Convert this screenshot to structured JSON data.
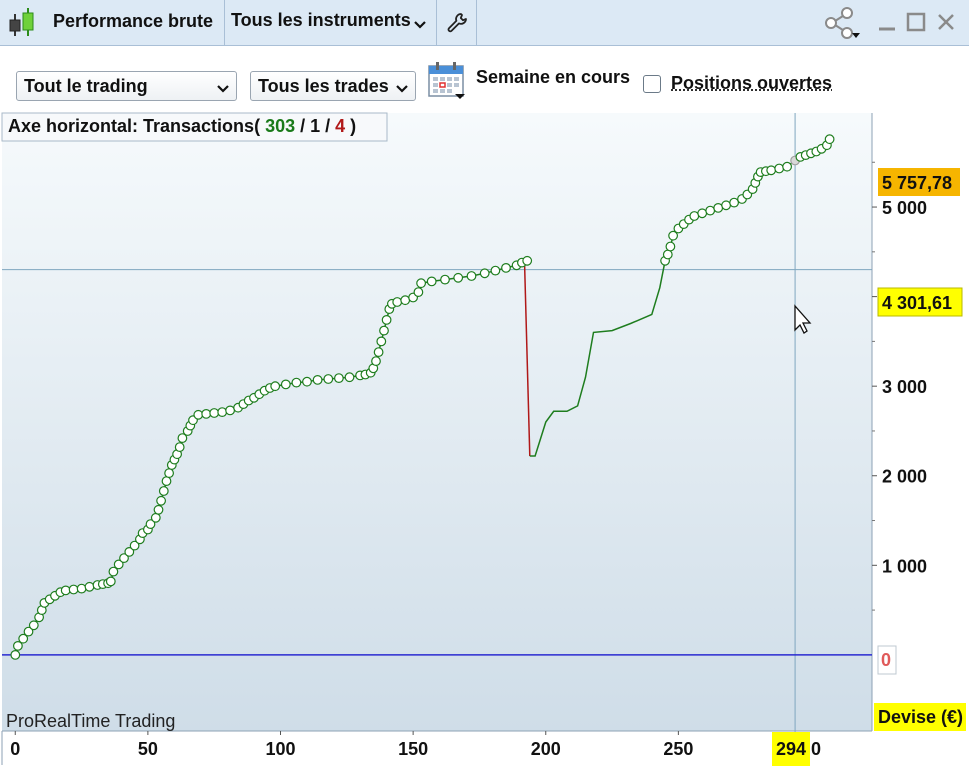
{
  "titlebar": {
    "title": "Performance brute",
    "instruments": "Tous les instruments"
  },
  "toolbar": {
    "filter_trading": "Tout le trading",
    "filter_trades": "Tous les trades",
    "period_label": "Semaine en cours",
    "open_positions_label": "Positions ouvertes",
    "open_positions_checked": false
  },
  "chart_header": {
    "prefix": "Axe horizontal:  Transactions",
    "open_paren": "( ",
    "wins": "303",
    "sep1": " / ",
    "neutral": "1",
    "sep2": " / ",
    "losses": "4",
    "close_paren": " )"
  },
  "colors": {
    "wins": "#1a7a1a",
    "losses": "#b01818",
    "equity_line": "#1e7d1e",
    "drawdown_line": "#b01818",
    "zero_line": "#2a2ad0",
    "marker_fill": "#ffffff",
    "highlight_yellow": "#ffff00",
    "last_value_orange": "#f6b500"
  },
  "watermark": "ProRealTime Trading",
  "y_badges": {
    "last_value": "5 757,78",
    "crosshair_value": "4 301,61",
    "zero": "0"
  },
  "currency_label": "Devise (€)",
  "crosshair_x_label": "294",
  "x_tail_label": "0",
  "chart_data": {
    "type": "line",
    "xlabel": "",
    "ylabel": "",
    "x_range": [
      -5,
      323
    ],
    "y_range": [
      -850,
      6050
    ],
    "x_ticks": [
      0,
      50,
      100,
      150,
      200,
      250
    ],
    "x_tick_labels": [
      "0",
      "50",
      "100",
      "150",
      "200",
      "250"
    ],
    "y_ticks": [
      1000,
      2000,
      3000,
      4000,
      5000
    ],
    "y_tick_labels": [
      "1 000",
      "2 000",
      "3 000",
      "4 000",
      "5 000"
    ],
    "crosshair": {
      "x": 294,
      "y": 4301.61
    },
    "segments": [
      {
        "name": "",
        "color_key": "equity_line",
        "markers": true,
        "points": [
          [
            0,
            0
          ],
          [
            1,
            100
          ],
          [
            3,
            180
          ],
          [
            5,
            260
          ],
          [
            7,
            330
          ],
          [
            9,
            420
          ],
          [
            10,
            500
          ],
          [
            11,
            580
          ],
          [
            13,
            620
          ],
          [
            15,
            660
          ],
          [
            17,
            700
          ],
          [
            19,
            720
          ],
          [
            22,
            730
          ],
          [
            25,
            740
          ],
          [
            28,
            760
          ],
          [
            31,
            780
          ],
          [
            33,
            790
          ],
          [
            35,
            800
          ],
          [
            36,
            820
          ],
          [
            37,
            930
          ],
          [
            39,
            1010
          ],
          [
            41,
            1080
          ],
          [
            43,
            1150
          ],
          [
            45,
            1220
          ],
          [
            47,
            1290
          ],
          [
            48,
            1360
          ],
          [
            50,
            1400
          ],
          [
            51,
            1460
          ],
          [
            53,
            1530
          ],
          [
            54,
            1620
          ],
          [
            55,
            1720
          ],
          [
            56,
            1830
          ],
          [
            57,
            1940
          ],
          [
            58,
            2030
          ],
          [
            59,
            2120
          ],
          [
            60,
            2180
          ],
          [
            61,
            2240
          ],
          [
            62,
            2320
          ],
          [
            63,
            2420
          ],
          [
            65,
            2500
          ],
          [
            66,
            2560
          ],
          [
            67,
            2620
          ],
          [
            69,
            2680
          ],
          [
            72,
            2690
          ],
          [
            75,
            2700
          ],
          [
            78,
            2710
          ],
          [
            81,
            2730
          ],
          [
            84,
            2760
          ],
          [
            86,
            2800
          ],
          [
            88,
            2840
          ],
          [
            90,
            2870
          ],
          [
            92,
            2910
          ],
          [
            94,
            2950
          ],
          [
            96,
            2980
          ],
          [
            98,
            3000
          ],
          [
            102,
            3020
          ],
          [
            106,
            3040
          ],
          [
            110,
            3050
          ],
          [
            114,
            3070
          ],
          [
            118,
            3080
          ],
          [
            122,
            3090
          ],
          [
            126,
            3100
          ],
          [
            130,
            3120
          ],
          [
            132,
            3130
          ],
          [
            134,
            3150
          ],
          [
            135,
            3200
          ],
          [
            136,
            3280
          ],
          [
            137,
            3380
          ],
          [
            138,
            3500
          ],
          [
            139,
            3620
          ],
          [
            140,
            3740
          ],
          [
            141,
            3860
          ],
          [
            142,
            3920
          ],
          [
            144,
            3940
          ],
          [
            147,
            3960
          ],
          [
            150,
            3990
          ],
          [
            152,
            4050
          ],
          [
            153,
            4150
          ],
          [
            157,
            4170
          ],
          [
            162,
            4190
          ],
          [
            167,
            4210
          ],
          [
            172,
            4230
          ],
          [
            177,
            4260
          ],
          [
            181,
            4290
          ],
          [
            185,
            4320
          ],
          [
            189,
            4350
          ],
          [
            191,
            4380
          ],
          [
            193,
            4400
          ]
        ]
      },
      {
        "name": "",
        "color_key": "drawdown_line",
        "markers": false,
        "points": [
          [
            192,
            4400
          ],
          [
            194,
            2220
          ]
        ]
      },
      {
        "name": "",
        "color_key": "equity_line",
        "markers": false,
        "points": [
          [
            194,
            2220
          ],
          [
            196,
            2220
          ],
          [
            200,
            2600
          ],
          [
            203,
            2720
          ],
          [
            208,
            2720
          ],
          [
            212,
            2780
          ],
          [
            215,
            3100
          ],
          [
            218,
            3600
          ],
          [
            225,
            3620
          ],
          [
            232,
            3700
          ],
          [
            240,
            3800
          ],
          [
            243,
            4100
          ],
          [
            245,
            4400
          ]
        ]
      },
      {
        "name": "",
        "color_key": "equity_line",
        "markers": true,
        "points": [
          [
            245,
            4400
          ],
          [
            246,
            4470
          ],
          [
            247,
            4560
          ],
          [
            248,
            4680
          ],
          [
            250,
            4760
          ],
          [
            252,
            4810
          ],
          [
            254,
            4860
          ],
          [
            256,
            4900
          ],
          [
            259,
            4930
          ],
          [
            262,
            4960
          ],
          [
            265,
            4990
          ],
          [
            268,
            5020
          ],
          [
            271,
            5050
          ],
          [
            274,
            5090
          ],
          [
            276,
            5140
          ],
          [
            278,
            5200
          ],
          [
            279,
            5270
          ],
          [
            280,
            5340
          ],
          [
            281,
            5390
          ],
          [
            283,
            5400
          ],
          [
            285,
            5410
          ],
          [
            288,
            5430
          ],
          [
            291,
            5450
          ],
          [
            294,
            5520
          ],
          [
            296,
            5560
          ],
          [
            298,
            5580
          ],
          [
            300,
            5600
          ],
          [
            302,
            5620
          ],
          [
            304,
            5650
          ],
          [
            306,
            5690
          ],
          [
            307,
            5757.78
          ]
        ]
      }
    ]
  }
}
